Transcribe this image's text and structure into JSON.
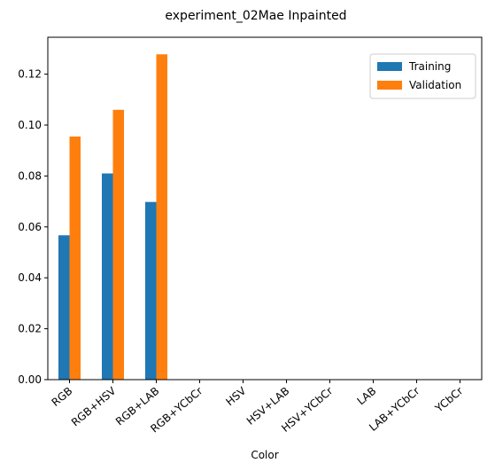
{
  "chart_data": {
    "type": "bar",
    "title": "experiment_02Mae Inpainted",
    "xlabel": "Color",
    "ylabel": "",
    "categories": [
      "RGB",
      "RGB+HSV",
      "RGB+LAB",
      "RGB+YCbCr",
      "HSV",
      "HSV+LAB",
      "HSV+YCbCr",
      "LAB",
      "LAB+YCbCr",
      "YCbCr"
    ],
    "series": [
      {
        "name": "Training",
        "color": "#1f77b4",
        "values": [
          0.0567,
          0.081,
          0.0698,
          0,
          0,
          0,
          0,
          0,
          0,
          0
        ]
      },
      {
        "name": "Validation",
        "color": "#ff7f0e",
        "values": [
          0.0955,
          0.106,
          0.1278,
          0,
          0,
          0,
          0,
          0,
          0,
          0
        ]
      }
    ],
    "ylim": [
      0,
      0.1345
    ],
    "yticks": [
      "0.00",
      "0.02",
      "0.04",
      "0.06",
      "0.08",
      "0.10",
      "0.12"
    ],
    "grid": false,
    "legend_position": "top-right"
  }
}
